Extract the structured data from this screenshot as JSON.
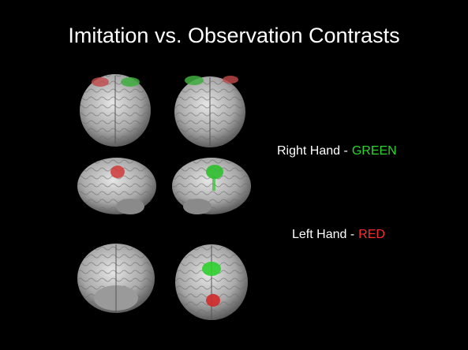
{
  "title": "Imitation vs. Observation Contrasts",
  "legend": [
    {
      "label": "Right Hand -",
      "word": "GREEN",
      "color": "#2bd42b"
    },
    {
      "label": "Left Hand -",
      "word": "RED",
      "color": "#ff2a2a"
    }
  ]
}
